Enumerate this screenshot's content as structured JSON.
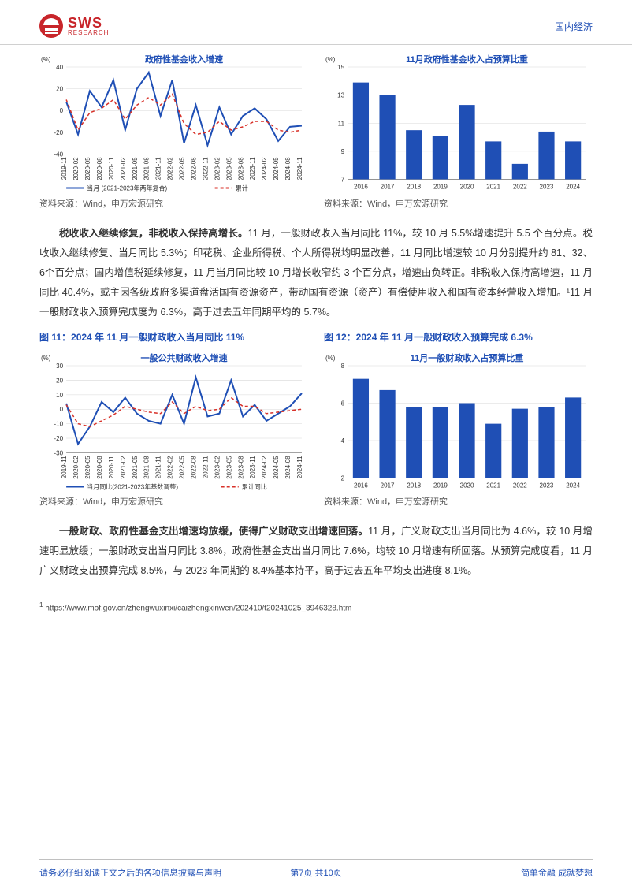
{
  "header": {
    "category": "国内经济",
    "logo_sws": "SWS",
    "logo_research": "RESEARCH"
  },
  "chart9": {
    "type": "line",
    "title": "政府性基金收入增速",
    "y_unit": "(%)",
    "ylim": [
      -40,
      40
    ],
    "ytick_step": 20,
    "background_color": "#ffffff",
    "grid_color": "#d8d8d8",
    "title_color": "#1f4fb5",
    "title_fontsize": 11,
    "label_fontsize": 8,
    "x_labels": [
      "2019-11",
      "2020-02",
      "2020-05",
      "2020-08",
      "2020-11",
      "2021-02",
      "2021-05",
      "2021-08",
      "2021-11",
      "2022-02",
      "2022-05",
      "2022-08",
      "2022-11",
      "2023-02",
      "2023-05",
      "2023-08",
      "2023-11",
      "2024-02",
      "2024-05",
      "2024-08",
      "2024-11"
    ],
    "series": [
      {
        "name": "当月 (2021-2023年两年复合)",
        "color": "#1f4fb5",
        "width": 2,
        "dash": "",
        "values": [
          8,
          -22,
          18,
          3,
          28,
          -18,
          20,
          35,
          -5,
          28,
          -30,
          5,
          -32,
          3,
          -22,
          -5,
          2,
          -8,
          -28,
          -15,
          -14
        ]
      },
      {
        "name": "累计",
        "color": "#d8322a",
        "width": 1.5,
        "dash": "4,3",
        "values": [
          10,
          -18,
          -2,
          2,
          10,
          -8,
          5,
          12,
          5,
          15,
          -12,
          -22,
          -20,
          -10,
          -18,
          -15,
          -10,
          -10,
          -18,
          -20,
          -18
        ]
      }
    ],
    "legend": {
      "items": [
        "当月 (2021-2023年两年复合)",
        "累计"
      ],
      "colors": [
        "#1f4fb5",
        "#d8322a"
      ],
      "position": "bottom"
    },
    "source": "资料来源：Wind，申万宏源研究"
  },
  "chart10": {
    "type": "bar",
    "title": "11月政府性基金收入占预算比重",
    "y_unit": "(%)",
    "ylim": [
      7,
      15
    ],
    "ytick_step": 2,
    "bar_color": "#1f4fb5",
    "bar_width": 0.6,
    "background_color": "#ffffff",
    "grid_color": "#d8d8d8",
    "title_color": "#1f4fb5",
    "title_fontsize": 11,
    "label_fontsize": 8,
    "categories": [
      "2016",
      "2017",
      "2018",
      "2019",
      "2020",
      "2021",
      "2022",
      "2023",
      "2024"
    ],
    "values": [
      13.9,
      13.0,
      10.5,
      10.1,
      12.3,
      9.7,
      8.1,
      10.4,
      9.7
    ],
    "source": "资料来源：Wind，申万宏源研究"
  },
  "para1_bold": "税收收入继续修复，非税收入保持高增长。",
  "para1": "11 月，一般财政收入当月同比 11%，较 10 月 5.5%增速提升 5.5 个百分点。税收收入继续修复、当月同比 5.3%；印花税、企业所得税、个人所得税均明显改善，11 月同比增速较 10 月分别提升约 81、32、6个百分点；国内增值税延续修复，11 月当月同比较 10 月增长收窄约 3 个百分点，增速由负转正。非税收入保持高增速，11 月同比 40.4%，或主因各级政府多渠道盘活国有资源资产，带动国有资源（资产）有偿使用收入和国有资本经营收入增加。¹11 月一般财政收入预算完成度为 6.3%，高于过去五年同期平均的 5.7%。",
  "fig11_title": "图 11：2024 年 11 月一般财政收入当月同比 11%",
  "fig12_title": "图 12：2024 年 11 月一般财政收入预算完成 6.3%",
  "chart11": {
    "type": "line",
    "title": "一般公共财政收入增速",
    "y_unit": "(%)",
    "ylim": [
      -30,
      30
    ],
    "ytick_step": 10,
    "background_color": "#ffffff",
    "grid_color": "#d8d8d8",
    "title_color": "#1f4fb5",
    "title_fontsize": 11,
    "label_fontsize": 8,
    "x_labels": [
      "2019-11",
      "2020-02",
      "2020-05",
      "2020-08",
      "2020-11",
      "2021-02",
      "2021-05",
      "2021-08",
      "2021-11",
      "2022-02",
      "2022-05",
      "2022-08",
      "2022-11",
      "2023-02",
      "2023-05",
      "2023-08",
      "2023-11",
      "2024-02",
      "2024-05",
      "2024-08",
      "2024-11"
    ],
    "series": [
      {
        "name": "当月同比(2021-2023年基数调整)",
        "color": "#1f4fb5",
        "width": 2,
        "dash": "",
        "values": [
          4,
          -24,
          -12,
          5,
          -2,
          8,
          -3,
          -8,
          -10,
          10,
          -10,
          22,
          -5,
          -3,
          20,
          -5,
          3,
          -8,
          -3,
          2,
          11
        ]
      },
      {
        "name": "累计同比",
        "color": "#d8322a",
        "width": 1.5,
        "dash": "4,3",
        "values": [
          3,
          -10,
          -12,
          -8,
          -4,
          2,
          0,
          -2,
          -3,
          5,
          -3,
          2,
          -1,
          0,
          8,
          2,
          2,
          -3,
          -2,
          -1,
          0
        ]
      }
    ],
    "legend": {
      "items": [
        "当月同比(2021-2023年基数调整)",
        "累计同比"
      ],
      "colors": [
        "#1f4fb5",
        "#d8322a"
      ],
      "position": "bottom"
    },
    "source": "资料来源：Wind，申万宏源研究"
  },
  "chart12": {
    "type": "bar",
    "title": "11月一般财政收入占预算比重",
    "y_unit": "(%)",
    "ylim": [
      2,
      8
    ],
    "ytick_step": 2,
    "bar_color": "#1f4fb5",
    "bar_width": 0.6,
    "background_color": "#ffffff",
    "grid_color": "#d8d8d8",
    "title_color": "#1f4fb5",
    "title_fontsize": 11,
    "label_fontsize": 8,
    "categories": [
      "2016",
      "2017",
      "2018",
      "2019",
      "2020",
      "2021",
      "2022",
      "2023",
      "2024"
    ],
    "values": [
      7.3,
      6.7,
      5.8,
      5.8,
      6.0,
      4.9,
      5.7,
      5.8,
      6.3
    ],
    "source": "资料来源：Wind，申万宏源研究"
  },
  "para2_bold": "一般财政、政府性基金支出增速均放缓，使得广义财政支出增速回落。",
  "para2": "11 月，广义财政支出当月同比为 4.6%，较 10 月增速明显放缓；一般财政支出当月同比 3.8%，政府性基金支出当月同比 7.6%，均较 10 月增速有所回落。从预算完成度看，11 月广义财政支出预算完成 8.5%，与 2023 年同期的 8.4%基本持平，高于过去五年平均支出进度 8.1%。",
  "footnote_marker": "1",
  "footnote": "https://www.mof.gov.cn/zhengwuxinxi/caizhengxinwen/202410/t20241025_3946328.htm",
  "footer": {
    "left": "请务必仔细阅读正文之后的各项信息披露与声明",
    "center": "第7页 共10页",
    "right": "简单金融 成就梦想"
  }
}
